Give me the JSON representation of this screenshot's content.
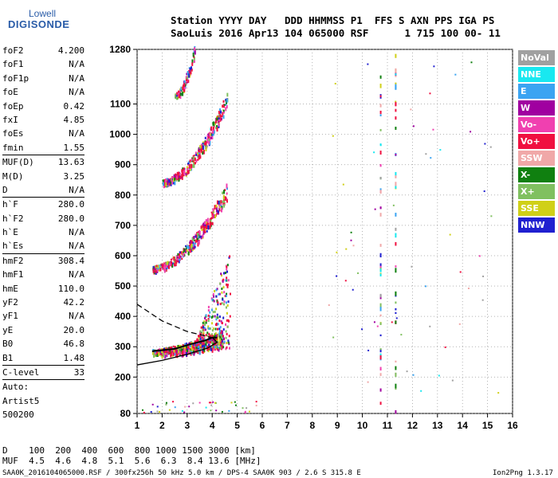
{
  "logo": {
    "line1": "Lowell",
    "line2": "DIGISONDE"
  },
  "header": {
    "line1": "Station YYYY DAY   DDD HHMMSS P1  FFS S AXN PPS IGA PS",
    "line2": "SaoLuis 2016 Apr13 104 065000 RSF      1 715 100 00- 11"
  },
  "params": [
    {
      "k": "foF2",
      "v": "4.200"
    },
    {
      "k": "foF1",
      "v": "N/A"
    },
    {
      "k": "foF1p",
      "v": "N/A"
    },
    {
      "k": "foE",
      "v": "N/A"
    },
    {
      "k": "foEp",
      "v": "0.42"
    },
    {
      "k": "fxI",
      "v": "4.85"
    },
    {
      "k": "foEs",
      "v": "N/A"
    },
    {
      "k": "fmin",
      "v": "1.55"
    },
    {
      "sep": true
    },
    {
      "k": "MUF(D)",
      "v": "13.63"
    },
    {
      "k": "M(D)",
      "v": "3.25"
    },
    {
      "k": "D",
      "v": "N/A"
    },
    {
      "sep": true
    },
    {
      "k": "h`F",
      "v": "280.0"
    },
    {
      "k": "h`F2",
      "v": "280.0"
    },
    {
      "k": "h`E",
      "v": "N/A"
    },
    {
      "k": "h`Es",
      "v": "N/A"
    },
    {
      "sep": true
    },
    {
      "k": "hmF2",
      "v": "308.4"
    },
    {
      "k": "hmF1",
      "v": "N/A"
    },
    {
      "k": "hmE",
      "v": "110.0"
    },
    {
      "k": "yF2",
      "v": "42.2"
    },
    {
      "k": "yF1",
      "v": "N/A"
    },
    {
      "k": "yE",
      "v": "20.0"
    },
    {
      "k": "B0",
      "v": "46.8"
    },
    {
      "k": "B1",
      "v": "1.48"
    },
    {
      "sep": true
    },
    {
      "k": "C-level",
      "v": "33"
    },
    {
      "sep": true
    },
    {
      "k": "Auto:",
      "v": ""
    },
    {
      "k": "Artist5",
      "v": ""
    },
    {
      "k": "500200",
      "v": ""
    }
  ],
  "legend": [
    {
      "label": "NoVal",
      "color": "#a0a0a0"
    },
    {
      "label": "NNE",
      "color": "#19e8f0"
    },
    {
      "label": "E",
      "color": "#3aa4f2"
    },
    {
      "label": "W",
      "color": "#a000a0"
    },
    {
      "label": "Vo-",
      "color": "#f040b0"
    },
    {
      "label": "Vo+",
      "color": "#f01040"
    },
    {
      "label": "SSW",
      "color": "#f0a8a8"
    },
    {
      "label": "X-",
      "color": "#108010"
    },
    {
      "label": "X+",
      "color": "#80c060"
    },
    {
      "label": "SSE",
      "color": "#d0d018"
    },
    {
      "label": "NNW",
      "color": "#2020d0"
    }
  ],
  "muf_table": {
    "d_label": "D",
    "d_vals": "  100  200  400  600  800 1000 1500 3000 [km]",
    "m_label": "MUF",
    "m_vals": "  4.5  4.6  4.8  5.1  5.6  6.3  8.4 13.6 [MHz]"
  },
  "footer": "SAA0K_2016104065000.RSF / 300fx256h 50 kHz 5.0 km / DPS-4 SAA0K 903 / 2.6 S 315.8 E",
  "version": "Ion2Png 1.3.17",
  "chart_data": {
    "type": "scatter",
    "xlabel": "",
    "ylabel": "",
    "xlim": [
      1,
      16
    ],
    "ylim": [
      80,
      1280
    ],
    "xticks": [
      "1",
      "2",
      "3",
      "4",
      "5",
      "6",
      "7",
      "8",
      "9",
      "10",
      "11",
      "12",
      "13",
      "14",
      "15",
      "16"
    ],
    "yticks": [
      "80",
      "200",
      "300",
      "400",
      "500",
      "600",
      "700",
      "800",
      "900",
      "1000",
      "1100",
      "1280"
    ],
    "grid": true,
    "traces": [
      {
        "name": "F-trace",
        "from": [
          1.6,
          285
        ],
        "to": [
          4.4,
          330
        ]
      },
      {
        "name": "2F-trace",
        "from": [
          1.6,
          560
        ],
        "to": [
          4.6,
          820
        ]
      },
      {
        "name": "3F-trace",
        "from": [
          2.0,
          845
        ],
        "to": [
          4.6,
          1120
        ]
      },
      {
        "name": "4F-trace",
        "from": [
          2.5,
          1130
        ],
        "to": [
          3.3,
          1280
        ]
      }
    ],
    "profile_solid": [
      [
        1,
        240
      ],
      [
        2,
        255
      ],
      [
        3,
        275
      ],
      [
        3.8,
        295
      ],
      [
        4.2,
        315
      ],
      [
        4.0,
        330
      ]
    ],
    "profile_dashed": [
      [
        1,
        440
      ],
      [
        2,
        385
      ],
      [
        3,
        350
      ],
      [
        4.0,
        330
      ]
    ],
    "fit_curve": [
      [
        1.6,
        285
      ],
      [
        2.5,
        293
      ],
      [
        3.2,
        310
      ],
      [
        3.7,
        320
      ],
      [
        4.0,
        330
      ],
      [
        4.2,
        330
      ]
    ]
  }
}
